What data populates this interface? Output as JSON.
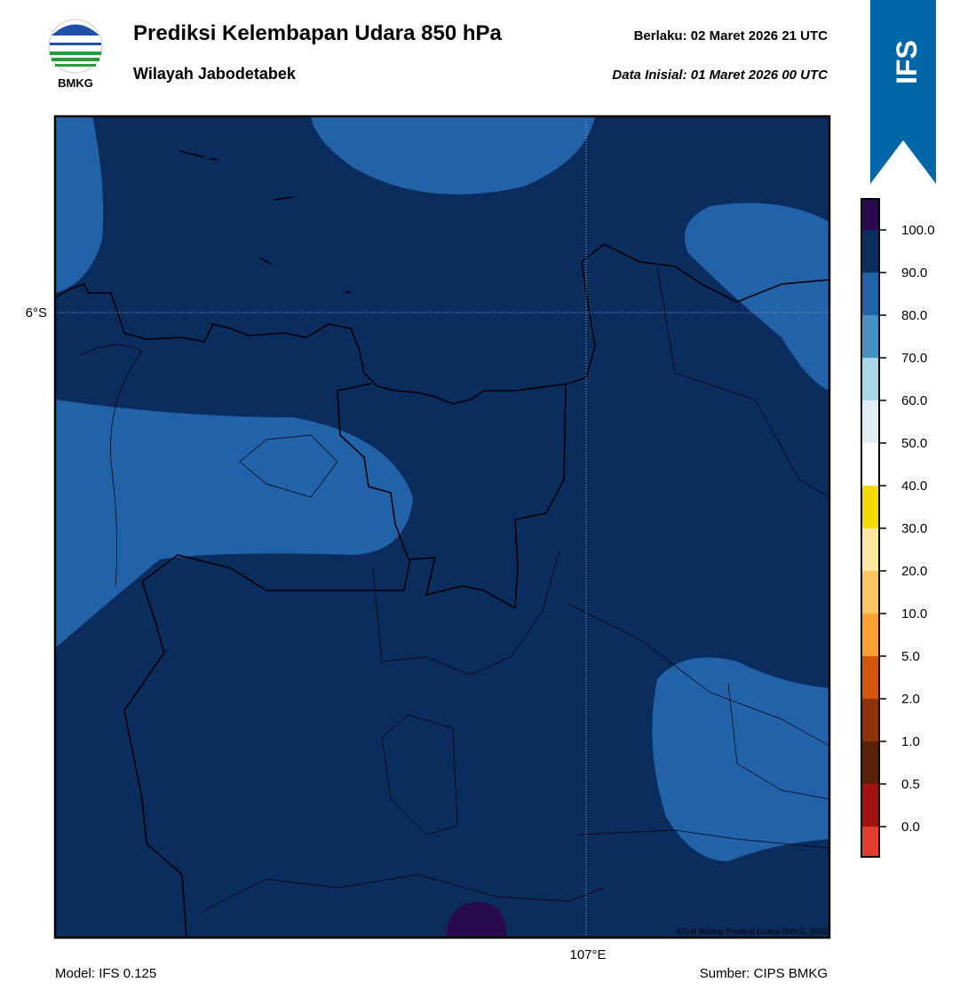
{
  "header": {
    "logo_text": "BMKG",
    "title": "Prediksi Kelembapan Udara 850 hPa",
    "subtitle": "Wilayah Jabodetabek",
    "valid_label": "Berlaku:  02 Maret 2026 21 UTC",
    "initial_label": "Data Inisial:  01 Maret 2026 00 UTC",
    "badge": "IFS"
  },
  "map": {
    "lat_label": "6°S",
    "lon_label": "107°E",
    "credit": "©Sub Bidang Prediksi Cuaca BMKG, 2020"
  },
  "colorbar": {
    "labels": [
      "100.0",
      "90.0",
      "80.0",
      "70.0",
      "60.0",
      "50.0",
      "40.0",
      "30.0",
      "20.0",
      "10.0",
      "5.0",
      "2.0",
      "1.0",
      "0.5",
      "0.0"
    ],
    "colors": [
      "#2a0a4e",
      "#0a2d5e",
      "#2262a9",
      "#4591c2",
      "#a9d5e8",
      "#e4eef6",
      "#ffffff",
      "#f5da00",
      "#fde7a2",
      "#fdc463",
      "#f9a233",
      "#d2560c",
      "#8e3208",
      "#5a2008",
      "#a31212",
      "#e23d31"
    ]
  },
  "footer": {
    "model": "Model: IFS 0.125",
    "source": "Sumber: CIPS BMKG"
  }
}
